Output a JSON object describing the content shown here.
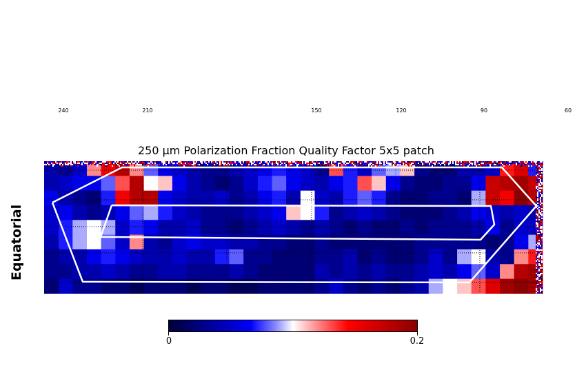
{
  "lon_ticks": [
    {
      "label": "240"
    },
    {
      "label": "210"
    },
    {
      "label": "150"
    },
    {
      "label": "120"
    },
    {
      "label": "90"
    },
    {
      "label": "60"
    }
  ],
  "title": "250 μm Polarization Fraction Quality Factor 5x5 patch",
  "ylabel": "Equatorial",
  "colorbar": {
    "min_label": "0",
    "max_label": "0.2",
    "colormap": "seismic",
    "vmin": 0,
    "vmax": 0.2
  },
  "colors": {
    "outline": "#ffffff",
    "grid": "#000000"
  },
  "chart_data": {
    "type": "heatmap",
    "title": "250 μm Polarization Fraction Quality Factor 5x5 patch",
    "ylabel": "Equatorial",
    "xlabel": "",
    "x_tick_labels": [
      "240",
      "210",
      "150",
      "120",
      "90",
      "60"
    ],
    "value_range": [
      0,
      0.2
    ],
    "colormap": "seismic",
    "grid": true,
    "grid_style": "dotted",
    "rows": 9,
    "cols": 35,
    "values": [
      [
        0.04,
        0.03,
        0.05,
        0.12,
        0.15,
        0.18,
        0.12,
        0.08,
        0.06,
        0.05,
        0.04,
        0.03,
        0.03,
        0.04,
        0.05,
        0.06,
        0.07,
        0.06,
        0.05,
        0.03,
        0.13,
        0.07,
        0.05,
        0.08,
        0.09,
        0.11,
        0.03,
        0.02,
        0.02,
        0.04,
        0.04,
        0.05,
        0.14,
        0.16,
        0.07
      ],
      [
        0.04,
        0.05,
        0.06,
        0.06,
        0.08,
        0.13,
        0.18,
        0.1,
        0.11,
        0.06,
        0.04,
        0.03,
        0.02,
        0.03,
        0.05,
        0.07,
        0.08,
        0.06,
        0.05,
        0.04,
        0.06,
        0.07,
        0.13,
        0.11,
        0.06,
        0.03,
        0.02,
        0.02,
        0.03,
        0.03,
        0.06,
        0.17,
        0.18,
        0.19,
        0.17
      ],
      [
        0.06,
        0.04,
        0.03,
        0.02,
        0.07,
        0.15,
        0.18,
        0.18,
        0.06,
        0.05,
        0.04,
        0.04,
        0.05,
        0.03,
        0.04,
        0.06,
        0.07,
        0.04,
        0.1,
        0.05,
        0.04,
        0.07,
        0.08,
        0.07,
        0.03,
        0.02,
        0.02,
        0.03,
        0.03,
        0.02,
        0.09,
        0.17,
        0.15,
        0.2,
        0.18
      ],
      [
        0.05,
        0.06,
        0.04,
        0.03,
        0.04,
        0.06,
        0.08,
        0.09,
        0.07,
        0.05,
        0.04,
        0.03,
        0.03,
        0.03,
        0.04,
        0.05,
        0.06,
        0.11,
        0.1,
        0.07,
        0.03,
        0.04,
        0.05,
        0.04,
        0.03,
        0.02,
        0.02,
        0.02,
        0.03,
        0.04,
        0.06,
        0.05,
        0.04,
        0.05,
        0.04
      ],
      [
        0.05,
        0.07,
        0.09,
        0.1,
        0.09,
        0.05,
        0.07,
        0.06,
        0.04,
        0.04,
        0.05,
        0.03,
        0.03,
        0.02,
        0.03,
        0.04,
        0.05,
        0.04,
        0.03,
        0.04,
        0.03,
        0.02,
        0.03,
        0.02,
        0.02,
        0.03,
        0.02,
        0.03,
        0.03,
        0.03,
        0.04,
        0.06,
        0.03,
        0.05,
        0.05
      ],
      [
        0.04,
        0.07,
        0.09,
        0.1,
        0.08,
        0.05,
        0.12,
        0.04,
        0.03,
        0.05,
        0.06,
        0.05,
        0.05,
        0.04,
        0.04,
        0.03,
        0.03,
        0.02,
        0.02,
        0.03,
        0.02,
        0.02,
        0.02,
        0.02,
        0.02,
        0.02,
        0.03,
        0.03,
        0.03,
        0.03,
        0.03,
        0.02,
        0.03,
        0.06,
        0.09
      ],
      [
        0.03,
        0.04,
        0.04,
        0.06,
        0.07,
        0.06,
        0.05,
        0.04,
        0.04,
        0.05,
        0.04,
        0.04,
        0.07,
        0.08,
        0.03,
        0.03,
        0.02,
        0.02,
        0.02,
        0.03,
        0.03,
        0.04,
        0.02,
        0.03,
        0.02,
        0.02,
        0.03,
        0.05,
        0.03,
        0.09,
        0.1,
        0.04,
        0.03,
        0.12,
        0.14
      ],
      [
        0.03,
        0.03,
        0.04,
        0.04,
        0.05,
        0.04,
        0.03,
        0.03,
        0.04,
        0.04,
        0.03,
        0.03,
        0.03,
        0.04,
        0.03,
        0.02,
        0.02,
        0.02,
        0.02,
        0.04,
        0.03,
        0.04,
        0.03,
        0.04,
        0.03,
        0.03,
        0.04,
        0.05,
        0.04,
        0.06,
        0.08,
        0.05,
        0.12,
        0.18,
        0.19
      ],
      [
        0.02,
        0.05,
        0.03,
        0.03,
        0.02,
        0.02,
        0.01,
        0.02,
        0.02,
        0.02,
        0.01,
        0.02,
        0.02,
        0.01,
        0.01,
        0.02,
        0.02,
        0.02,
        0.02,
        0.03,
        0.05,
        0.03,
        0.02,
        0.03,
        0.02,
        0.03,
        0.04,
        0.09,
        0.1,
        0.11,
        0.13,
        0.16,
        0.19,
        0.2,
        0.19
      ]
    ]
  }
}
